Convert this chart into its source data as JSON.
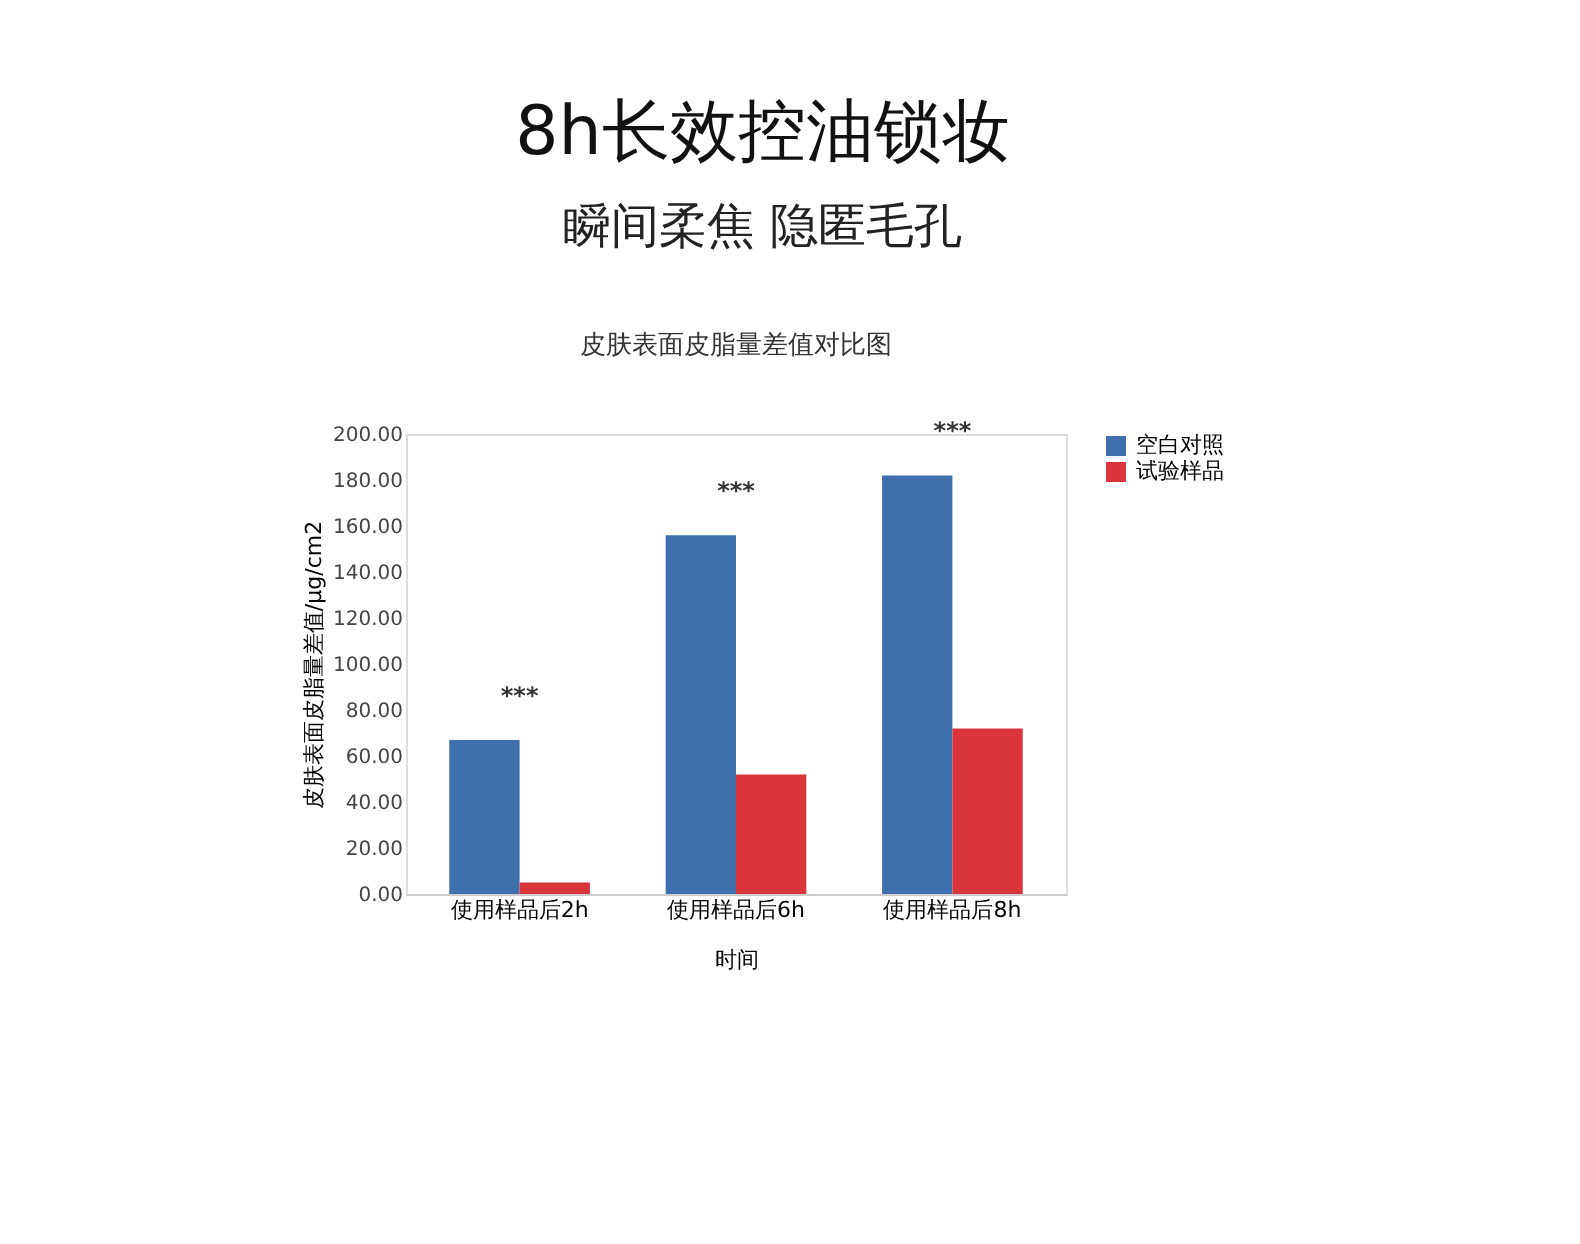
{
  "chart_data": {
    "type": "bar",
    "title": "皮肤表面皮脂量差值对比图",
    "categories": [
      "使用样品后2h",
      "使用样品后6h",
      "使用样品后8h"
    ],
    "series": [
      {
        "name": "空白对照",
        "color": "#3f6fad",
        "values": [
          67,
          156,
          182
        ]
      },
      {
        "name": "试验样品",
        "color": "#d9353a",
        "values": [
          5,
          52,
          72
        ]
      }
    ],
    "xlabel": "时间",
    "ylabel": "皮肤表面皮脂量差值/μg/cm2",
    "ylim": [
      0,
      200
    ],
    "yticks": [
      {
        "value": 0,
        "label": "0.00"
      },
      {
        "value": 20,
        "label": "20.00"
      },
      {
        "value": 40,
        "label": "40.00"
      },
      {
        "value": 60,
        "label": "60.00"
      },
      {
        "value": 80,
        "label": "80.00"
      },
      {
        "value": 100,
        "label": "100.00"
      },
      {
        "value": 120,
        "label": "120.00"
      },
      {
        "value": 140,
        "label": "140.00"
      },
      {
        "value": 160,
        "label": "160.00"
      },
      {
        "value": 180,
        "label": "180.00"
      },
      {
        "value": 200,
        "label": "200.00"
      }
    ],
    "annotations": [
      "8h长效控油锁妆",
      "瞬间柔焦 隐匿毛孔",
      {
        "text": "***",
        "x": "使用样品后2h",
        "y": 67
      },
      {
        "text": "***",
        "x": "使用样品后6h",
        "y": 156
      },
      {
        "text": "***",
        "x": "使用样品后8h",
        "y": 182
      }
    ],
    "grid": false,
    "legend": "right"
  }
}
